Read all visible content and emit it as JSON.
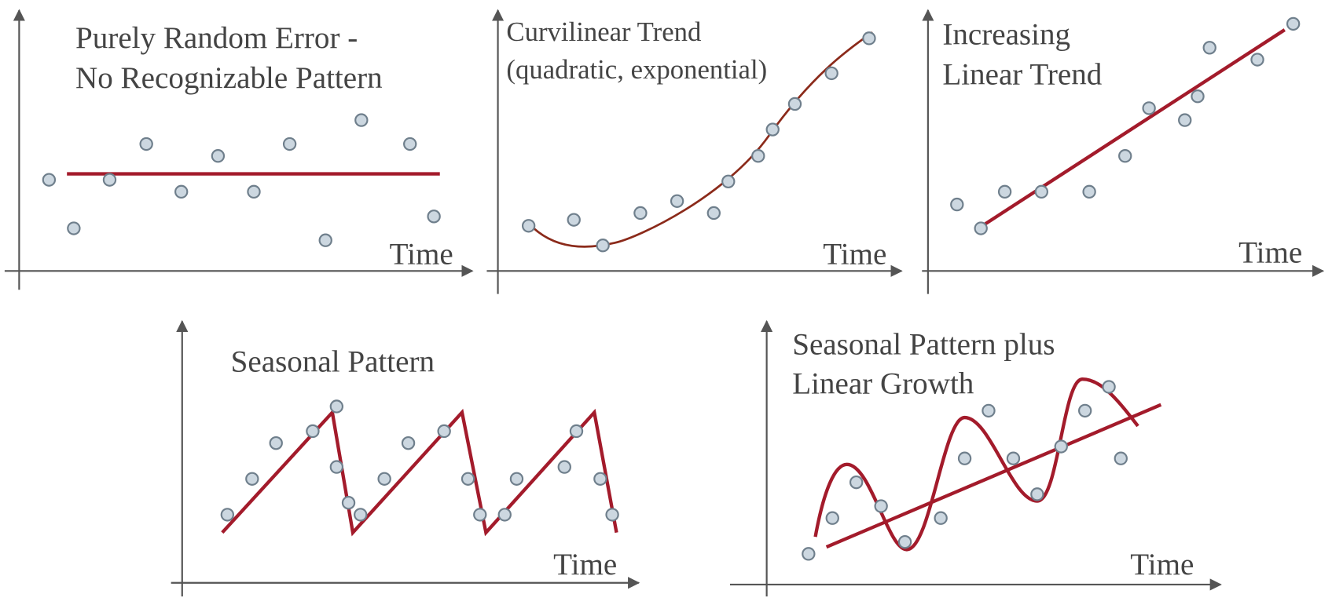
{
  "panels": [
    {
      "title": [
        "Purely Random Error -",
        "No Recognizable Pattern"
      ],
      "x_label": "Time"
    },
    {
      "title": [
        "Curvilinear Trend",
        "(quadratic, exponential)"
      ],
      "x_label": "Time"
    },
    {
      "title": [
        "Increasing",
        "Linear Trend"
      ],
      "x_label": "Time"
    },
    {
      "title": [
        "Seasonal Pattern"
      ],
      "x_label": "Time"
    },
    {
      "title": [
        "Seasonal Pattern plus",
        "Linear Growth"
      ],
      "x_label": "Time"
    }
  ]
}
